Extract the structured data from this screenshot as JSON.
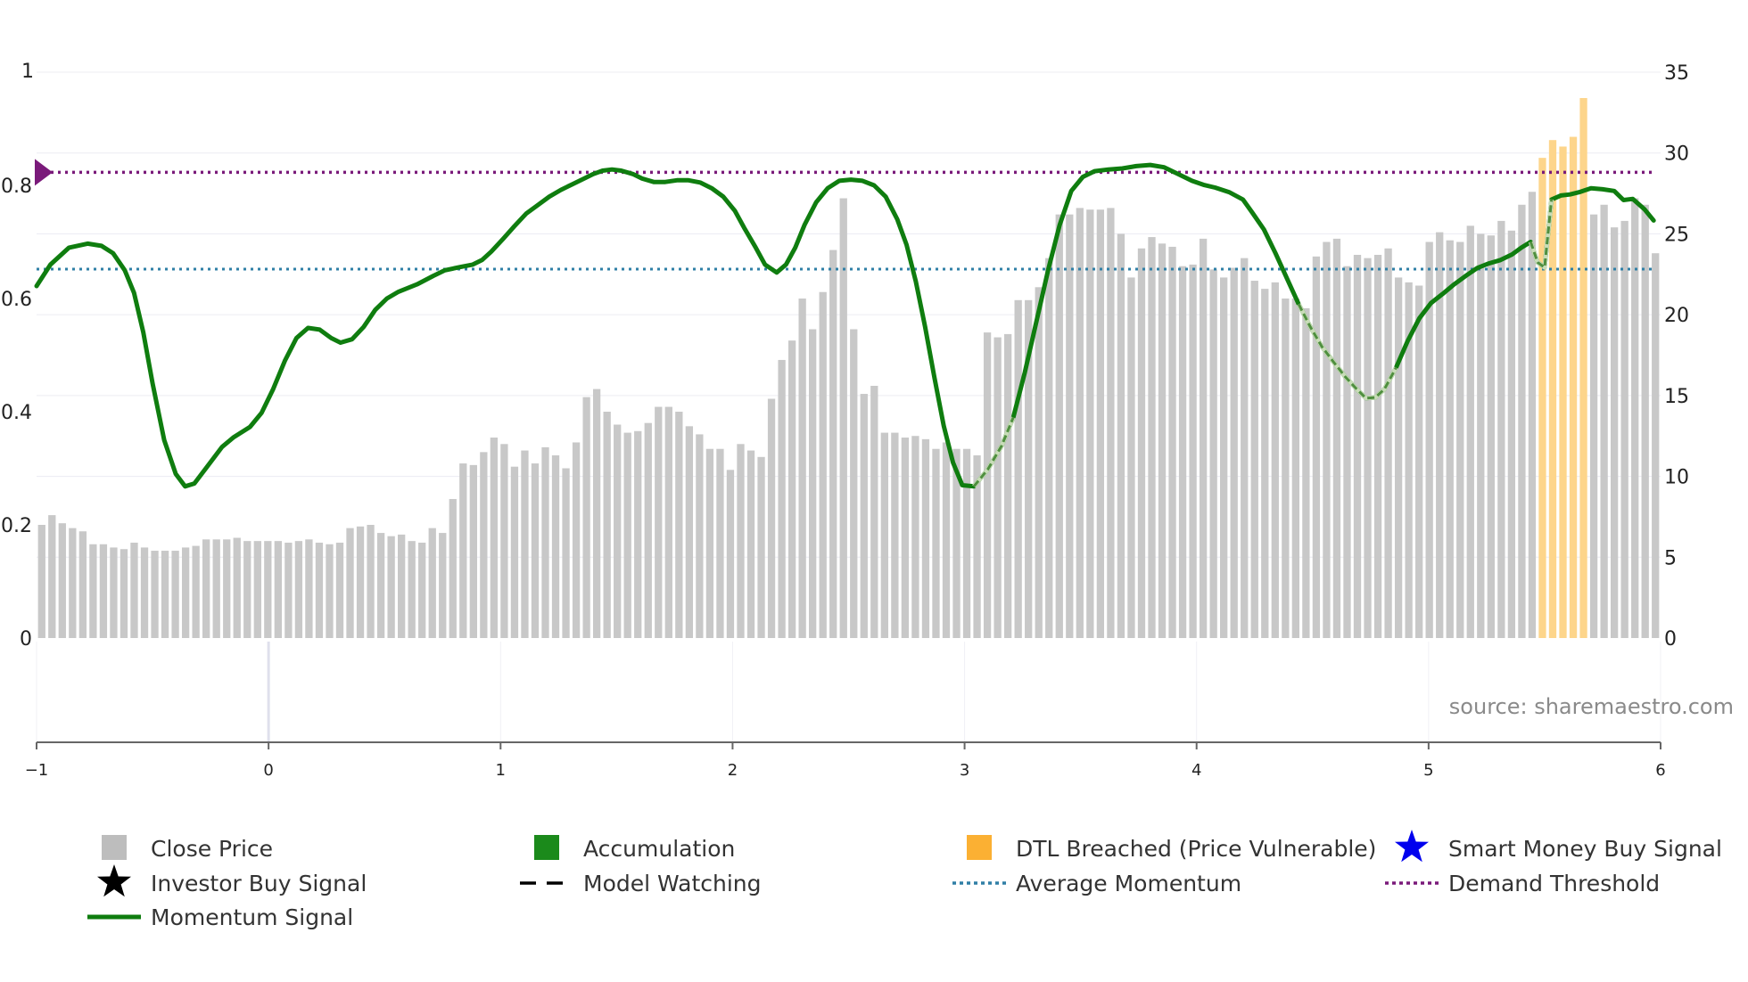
{
  "source_label": "source: sharemaestro.com",
  "colors": {
    "bar": "#c8c8c8",
    "bar_breached": "#fdd58b",
    "momentum": "#0f7d0f",
    "momentum_faded": "#4f8f3f",
    "avg_line": "#2f7fa6",
    "demand_line": "#7a1a7a",
    "grid": "#ececf2",
    "axis": "#666666"
  },
  "chart_data": {
    "type": "bar",
    "title": "",
    "left_axis": {
      "ylim": [
        0,
        1
      ],
      "ticks": [
        "0",
        "0.2",
        "0.4",
        "0.6",
        "0.8",
        "1"
      ],
      "tick_values": [
        0,
        0.2,
        0.4,
        0.6,
        0.8,
        1
      ]
    },
    "right_axis": {
      "ylim": [
        0,
        35
      ],
      "ticks": [
        "0",
        "5",
        "10",
        "15",
        "20",
        "25",
        "30",
        "35"
      ],
      "tick_values": [
        0,
        5,
        10,
        15,
        20,
        25,
        30,
        35
      ]
    },
    "x_axis": {
      "xlim": [
        -1,
        6
      ],
      "ticks": [
        "−1",
        "0",
        "1",
        "2",
        "3",
        "4",
        "5",
        "6"
      ],
      "tick_values": [
        -1,
        0,
        1,
        2,
        3,
        4,
        5,
        6
      ]
    },
    "close_price": [
      7.0,
      7.6,
      7.1,
      6.8,
      6.6,
      5.8,
      5.8,
      5.6,
      5.5,
      5.9,
      5.6,
      5.4,
      5.4,
      5.4,
      5.6,
      5.7,
      6.1,
      6.1,
      6.1,
      6.2,
      6.0,
      6.0,
      6.0,
      6.0,
      5.9,
      6.0,
      6.1,
      5.9,
      5.8,
      5.9,
      6.8,
      6.9,
      7.0,
      6.5,
      6.3,
      6.4,
      6.0,
      5.9,
      6.8,
      6.5,
      8.6,
      10.8,
      10.7,
      11.5,
      12.4,
      12.0,
      10.6,
      11.6,
      10.8,
      11.8,
      11.3,
      10.5,
      12.1,
      14.9,
      15.4,
      14.0,
      13.2,
      12.7,
      12.8,
      13.3,
      14.3,
      14.3,
      14.0,
      13.1,
      12.6,
      11.7,
      11.7,
      10.4,
      12.0,
      11.6,
      11.2,
      14.8,
      17.2,
      18.4,
      21.0,
      19.1,
      21.4,
      24.0,
      27.2,
      19.1,
      15.1,
      15.6,
      12.7,
      12.7,
      12.4,
      12.5,
      12.3,
      11.7,
      12.1,
      11.7,
      11.7,
      11.3,
      18.9,
      18.6,
      18.8,
      20.9,
      20.9,
      21.7,
      23.5,
      26.2,
      26.2,
      26.6,
      26.5,
      26.5,
      26.6,
      25.0,
      22.3,
      24.1,
      24.8,
      24.4,
      24.2,
      23.0,
      23.1,
      24.7,
      22.8,
      22.3,
      22.9,
      23.5,
      22.1,
      21.6,
      22.0,
      21.0,
      21.0,
      20.4,
      23.6,
      24.5,
      24.7,
      23.0,
      23.7,
      23.5,
      23.7,
      24.1,
      22.3,
      22.0,
      21.8,
      24.5,
      25.1,
      24.6,
      24.5,
      25.5,
      25.0,
      24.9,
      25.8,
      25.2,
      26.8,
      27.6,
      29.7,
      30.8,
      30.4,
      31.0,
      33.4,
      26.2,
      26.8,
      25.4,
      25.8,
      27.2,
      26.8,
      23.8
    ],
    "breached_indices": [
      146,
      147,
      148,
      149,
      150
    ],
    "momentum_signal": [
      [
        -1.0,
        0.622
      ],
      [
        -0.94,
        0.66
      ],
      [
        -0.86,
        0.69
      ],
      [
        -0.78,
        0.697
      ],
      [
        -0.72,
        0.693
      ],
      [
        -0.67,
        0.68
      ],
      [
        -0.62,
        0.65
      ],
      [
        -0.58,
        0.61
      ],
      [
        -0.54,
        0.54
      ],
      [
        -0.5,
        0.45
      ],
      [
        -0.45,
        0.35
      ],
      [
        -0.4,
        0.29
      ],
      [
        -0.36,
        0.268
      ],
      [
        -0.32,
        0.273
      ],
      [
        -0.27,
        0.3
      ],
      [
        -0.2,
        0.338
      ],
      [
        -0.15,
        0.355
      ],
      [
        -0.08,
        0.373
      ],
      [
        -0.03,
        0.398
      ],
      [
        0.02,
        0.44
      ],
      [
        0.07,
        0.49
      ],
      [
        0.12,
        0.53
      ],
      [
        0.17,
        0.548
      ],
      [
        0.22,
        0.545
      ],
      [
        0.27,
        0.53
      ],
      [
        0.31,
        0.522
      ],
      [
        0.36,
        0.528
      ],
      [
        0.41,
        0.55
      ],
      [
        0.46,
        0.58
      ],
      [
        0.51,
        0.6
      ],
      [
        0.56,
        0.612
      ],
      [
        0.64,
        0.625
      ],
      [
        0.71,
        0.64
      ],
      [
        0.76,
        0.65
      ],
      [
        0.83,
        0.656
      ],
      [
        0.88,
        0.66
      ],
      [
        0.92,
        0.668
      ],
      [
        0.96,
        0.683
      ],
      [
        1.01,
        0.705
      ],
      [
        1.06,
        0.728
      ],
      [
        1.11,
        0.75
      ],
      [
        1.16,
        0.765
      ],
      [
        1.21,
        0.78
      ],
      [
        1.26,
        0.792
      ],
      [
        1.31,
        0.802
      ],
      [
        1.36,
        0.812
      ],
      [
        1.4,
        0.82
      ],
      [
        1.44,
        0.826
      ],
      [
        1.48,
        0.828
      ],
      [
        1.52,
        0.826
      ],
      [
        1.57,
        0.82
      ],
      [
        1.61,
        0.812
      ],
      [
        1.66,
        0.806
      ],
      [
        1.71,
        0.806
      ],
      [
        1.76,
        0.809
      ],
      [
        1.81,
        0.809
      ],
      [
        1.86,
        0.805
      ],
      [
        1.91,
        0.795
      ],
      [
        1.96,
        0.78
      ],
      [
        2.01,
        0.755
      ],
      [
        2.05,
        0.725
      ],
      [
        2.1,
        0.69
      ],
      [
        2.14,
        0.66
      ],
      [
        2.19,
        0.646
      ],
      [
        2.23,
        0.66
      ],
      [
        2.27,
        0.69
      ],
      [
        2.31,
        0.73
      ],
      [
        2.36,
        0.77
      ],
      [
        2.41,
        0.795
      ],
      [
        2.46,
        0.808
      ],
      [
        2.51,
        0.81
      ],
      [
        2.56,
        0.808
      ],
      [
        2.61,
        0.8
      ],
      [
        2.66,
        0.78
      ],
      [
        2.71,
        0.74
      ],
      [
        2.75,
        0.695
      ],
      [
        2.79,
        0.63
      ],
      [
        2.83,
        0.55
      ],
      [
        2.87,
        0.46
      ],
      [
        2.91,
        0.375
      ],
      [
        2.95,
        0.31
      ],
      [
        2.99,
        0.27
      ],
      [
        3.04,
        0.268
      ],
      [
        3.1,
        0.298
      ],
      [
        3.16,
        0.34
      ],
      [
        3.21,
        0.39
      ],
      [
        3.26,
        0.47
      ],
      [
        3.31,
        0.56
      ],
      [
        3.36,
        0.65
      ],
      [
        3.41,
        0.73
      ],
      [
        3.46,
        0.79
      ],
      [
        3.51,
        0.815
      ],
      [
        3.56,
        0.825
      ],
      [
        3.62,
        0.828
      ],
      [
        3.68,
        0.83
      ],
      [
        3.74,
        0.834
      ],
      [
        3.8,
        0.836
      ],
      [
        3.86,
        0.832
      ],
      [
        3.92,
        0.82
      ],
      [
        3.98,
        0.808
      ],
      [
        4.03,
        0.801
      ],
      [
        4.08,
        0.796
      ],
      [
        4.14,
        0.788
      ],
      [
        4.2,
        0.775
      ],
      [
        4.24,
        0.752
      ],
      [
        4.29,
        0.722
      ],
      [
        4.34,
        0.68
      ],
      [
        4.39,
        0.635
      ],
      [
        4.44,
        0.59
      ],
      [
        4.49,
        0.55
      ],
      [
        4.54,
        0.515
      ],
      [
        4.59,
        0.488
      ],
      [
        4.64,
        0.462
      ],
      [
        4.69,
        0.44
      ],
      [
        4.73,
        0.424
      ],
      [
        4.77,
        0.425
      ],
      [
        4.81,
        0.44
      ],
      [
        4.86,
        0.478
      ],
      [
        4.91,
        0.525
      ],
      [
        4.96,
        0.565
      ],
      [
        5.01,
        0.592
      ],
      [
        5.06,
        0.608
      ],
      [
        5.11,
        0.625
      ],
      [
        5.16,
        0.64
      ],
      [
        5.21,
        0.654
      ],
      [
        5.26,
        0.662
      ],
      [
        5.31,
        0.668
      ],
      [
        5.36,
        0.678
      ],
      [
        5.4,
        0.69
      ],
      [
        5.44,
        0.7
      ],
      [
        5.47,
        0.664
      ],
      [
        5.5,
        0.655
      ],
      [
        5.53,
        0.775
      ],
      [
        5.57,
        0.782
      ],
      [
        5.61,
        0.784
      ],
      [
        5.65,
        0.788
      ],
      [
        5.7,
        0.795
      ],
      [
        5.75,
        0.793
      ],
      [
        5.8,
        0.79
      ],
      [
        5.84,
        0.774
      ],
      [
        5.88,
        0.776
      ],
      [
        5.93,
        0.758
      ],
      [
        5.97,
        0.738
      ]
    ],
    "momentum_faded_segments": [
      [
        3.0,
        3.22
      ],
      [
        4.42,
        4.88
      ],
      [
        5.44,
        5.54
      ]
    ],
    "average_momentum": 0.652,
    "demand_threshold": 0.823,
    "legend": [
      {
        "label": "Close Price",
        "symbol": "square",
        "color": "#bdbdbd"
      },
      {
        "label": "Accumulation",
        "symbol": "square",
        "color": "#1b8a1b"
      },
      {
        "label": "DTL Breached (Price Vulnerable)",
        "symbol": "square",
        "color": "#fbb033"
      },
      {
        "label": "Smart Money Buy Signal",
        "symbol": "star",
        "color": "#0000ee"
      },
      {
        "label": "Investor Buy Signal",
        "symbol": "star",
        "color": "#000000"
      },
      {
        "label": "Model Watching",
        "symbol": "dash",
        "color": "#000000"
      },
      {
        "label": "Average Momentum",
        "symbol": "dot",
        "color": "#2f7fa6"
      },
      {
        "label": "Demand Threshold",
        "symbol": "dot",
        "color": "#7a1a7a"
      },
      {
        "label": "Momentum Signal",
        "symbol": "line",
        "color": "#0f7d0f"
      }
    ]
  }
}
